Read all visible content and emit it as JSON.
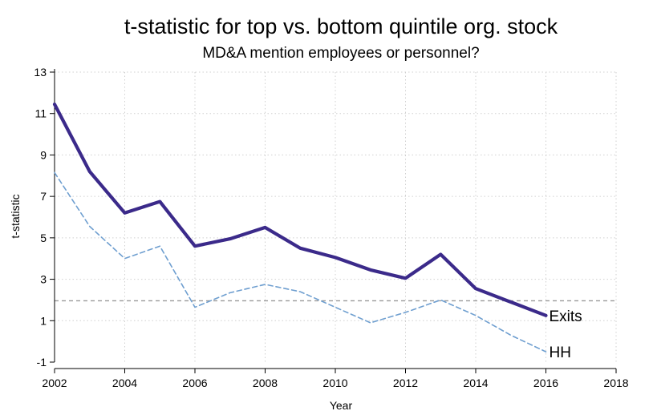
{
  "chart_data": {
    "type": "line",
    "title": "t-statistic for top vs. bottom quintile org. stock",
    "subtitle": "MD&A mention employees or personnel?",
    "xlabel": "Year",
    "ylabel": "t-statistic",
    "xlim": [
      2002,
      2018
    ],
    "ylim": [
      -1,
      13
    ],
    "xticks": [
      2002,
      2004,
      2006,
      2008,
      2010,
      2012,
      2014,
      2016,
      2018
    ],
    "yticks": [
      -1,
      1,
      3,
      5,
      7,
      9,
      11,
      13
    ],
    "xtick_labels": [
      "2002",
      "2004",
      "2006",
      "2008",
      "2010",
      "2012",
      "2014",
      "2016",
      "2018"
    ],
    "ytick_labels": [
      "-1",
      "1",
      "3",
      "5",
      "7",
      "9",
      "11",
      "13"
    ],
    "grid": true,
    "reference_line": {
      "y": 1.96,
      "style": "dashed",
      "color": "#999999"
    },
    "x": [
      2002,
      2003,
      2004,
      2005,
      2006,
      2007,
      2008,
      2009,
      2010,
      2011,
      2012,
      2013,
      2014,
      2015,
      2016
    ],
    "series": [
      {
        "name": "Exits",
        "color": "#3b2a8a",
        "style": "solid",
        "values": [
          11.45,
          8.2,
          6.2,
          6.75,
          4.6,
          4.95,
          5.5,
          4.5,
          4.05,
          3.45,
          3.05,
          4.2,
          2.55,
          1.9,
          1.25
        ]
      },
      {
        "name": "HH",
        "color": "#6f9fd0",
        "style": "dashed",
        "values": [
          8.15,
          5.55,
          4.0,
          4.6,
          1.65,
          2.35,
          2.75,
          2.4,
          1.65,
          0.9,
          1.4,
          2.0,
          1.25,
          0.3,
          -0.5
        ]
      }
    ]
  }
}
